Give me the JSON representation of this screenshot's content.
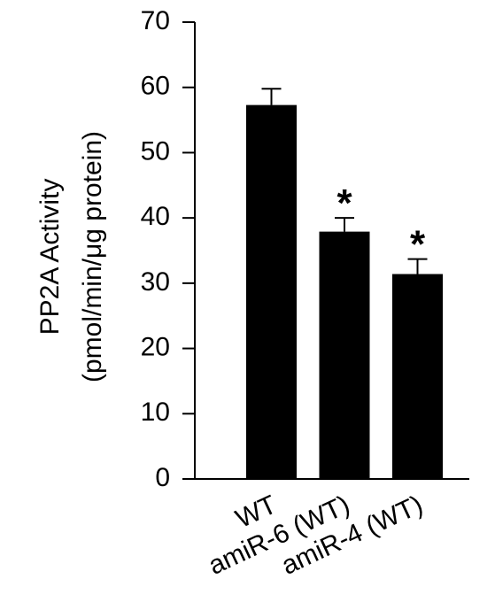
{
  "chart_data": {
    "type": "bar",
    "y_label": [
      "PP2A Activity",
      "(pmol/min/μg protein)"
    ],
    "categories": [
      "WT",
      "amiR-6 (WT)",
      "amiR-4 (WT)"
    ],
    "series": [
      {
        "values": [
          57.3,
          37.9,
          31.4
        ],
        "errors": [
          2.5,
          2.1,
          2.3
        ],
        "color": "#000000"
      }
    ],
    "markers": [
      null,
      "*",
      "*"
    ],
    "ylim": [
      0,
      70
    ],
    "yticks": [
      0,
      10,
      20,
      30,
      40,
      50,
      60,
      70
    ],
    "grid": false
  }
}
